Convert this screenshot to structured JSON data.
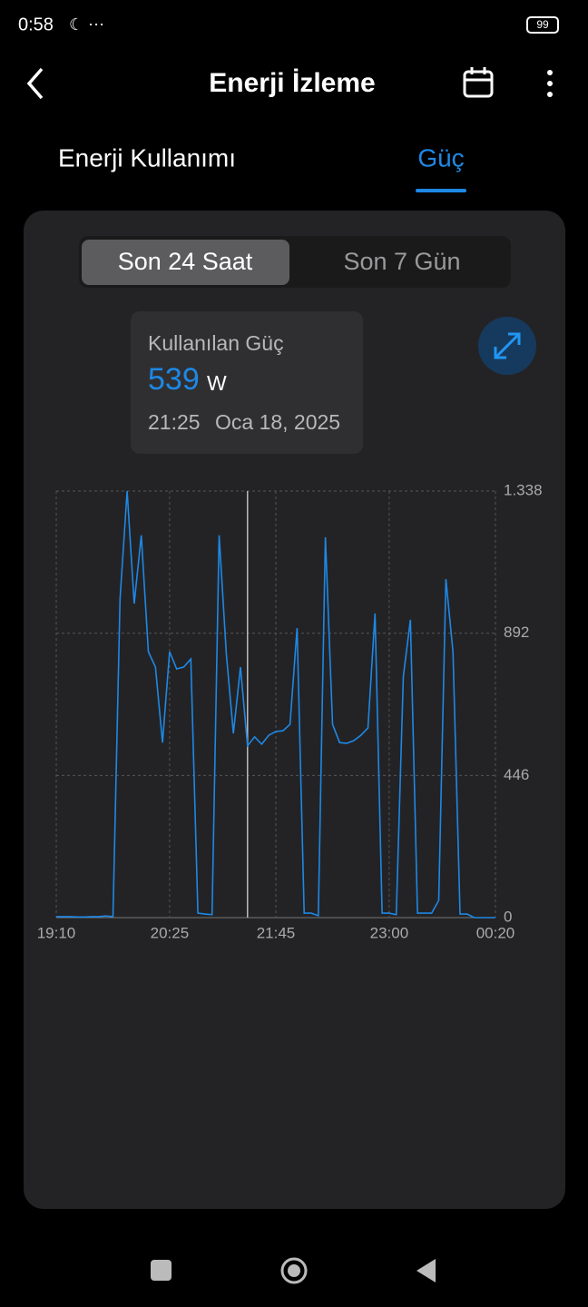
{
  "status_bar": {
    "time": "0:58",
    "battery": "99"
  },
  "header": {
    "title": "Enerji İzleme"
  },
  "tabs": [
    "Enerji Kullanımı",
    "Güç"
  ],
  "segments": [
    "Son 24 Saat",
    "Son 7 Gün"
  ],
  "tooltip": {
    "label": "Kullanılan Güç",
    "value": "539",
    "unit": "W",
    "time": "21:25",
    "date": "Oca 18, 2025"
  },
  "chart_data": {
    "type": "line",
    "color": "#1e88e5",
    "grid": true,
    "categories": [
      "19:10",
      null,
      null,
      null,
      null,
      null,
      null,
      null,
      null,
      null,
      null,
      null,
      null,
      null,
      null,
      null,
      "20:25",
      null,
      null,
      null,
      null,
      null,
      null,
      null,
      null,
      null,
      null,
      null,
      null,
      null,
      null,
      "21:45",
      null,
      null,
      null,
      null,
      null,
      null,
      null,
      null,
      null,
      null,
      null,
      null,
      null,
      null,
      null,
      "23:00",
      null,
      null,
      null,
      null,
      null,
      null,
      null,
      null,
      null,
      null,
      null,
      null,
      null,
      null,
      "00:20"
    ],
    "values": [
      3,
      3,
      3,
      2,
      2,
      3,
      3,
      5,
      3,
      1000,
      1338,
      985,
      1199,
      834,
      786,
      549,
      834,
      780,
      786,
      811,
      14,
      11,
      9,
      1199,
      828,
      578,
      786,
      539,
      567,
      544,
      572,
      584,
      586,
      606,
      908,
      14,
      14,
      6,
      1193,
      606,
      549,
      547,
      555,
      572,
      595,
      954,
      14,
      14,
      9,
      757,
      934,
      14,
      14,
      14,
      54,
      1062,
      834,
      11,
      11,
      0,
      0,
      0,
      0
    ],
    "ylim": [
      0,
      1338
    ],
    "yticks": [
      0,
      446,
      892,
      {
        "value": 1338,
        "label": "1.338"
      }
    ]
  }
}
